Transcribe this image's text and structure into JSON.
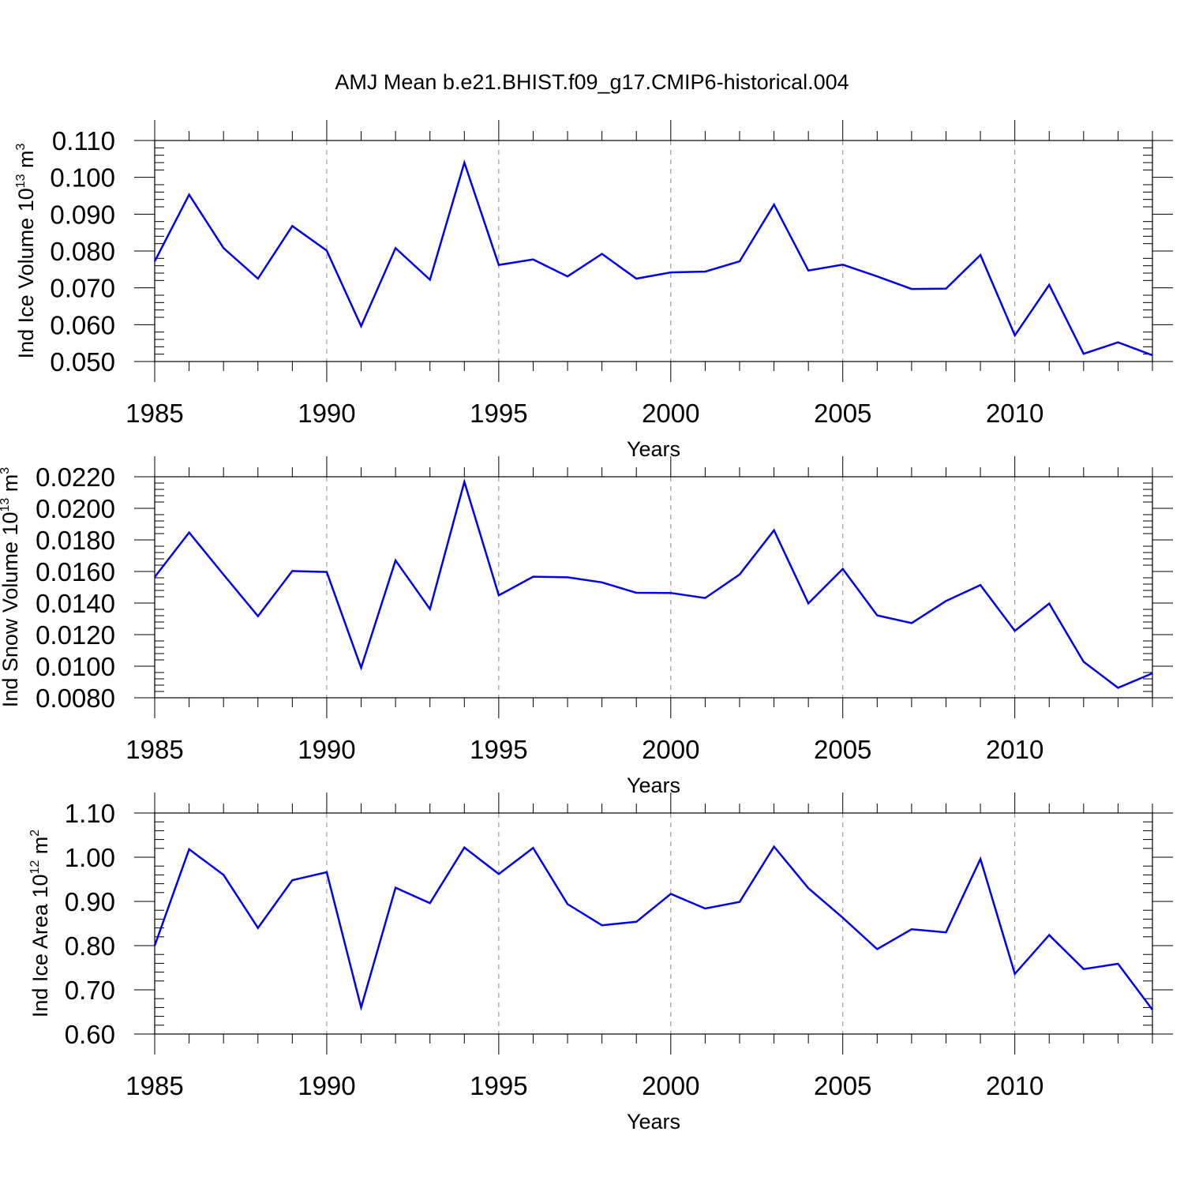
{
  "figure": {
    "title": "AMJ Mean b.e21.BHIST.f09_g17.CMIP6-historical.004",
    "line_color": "#0000ee",
    "grid_color": "#888888"
  },
  "chart_data": [
    {
      "type": "line",
      "xlabel": "Years",
      "ylabel": {
        "main": "Ind Ice Volume 10",
        "sup": "13",
        "unit": " m",
        "unit_sup": "3"
      },
      "xlim": [
        1985,
        2014
      ],
      "ylim": [
        0.05,
        0.11
      ],
      "xticks": [
        1985,
        1990,
        1995,
        2000,
        2005,
        2010
      ],
      "xtick_labels": [
        "1985",
        "1990",
        "1995",
        "2000",
        "2005",
        "2010"
      ],
      "yticks": [
        0.05,
        0.06,
        0.07,
        0.08,
        0.09,
        0.1,
        0.11
      ],
      "ytick_labels": [
        "0.050",
        "0.060",
        "0.070",
        "0.080",
        "0.090",
        "0.100",
        "0.110"
      ],
      "grid": "vertical dashed at major x ticks",
      "x": [
        1985,
        1986,
        1987,
        1988,
        1989,
        1990,
        1991,
        1992,
        1993,
        1994,
        1995,
        1996,
        1997,
        1998,
        1999,
        2000,
        2001,
        2002,
        2003,
        2004,
        2005,
        2006,
        2007,
        2008,
        2009,
        2010,
        2011,
        2012,
        2013,
        2014
      ],
      "series": [
        {
          "values": [
            0.0772,
            0.0953,
            0.0808,
            0.0725,
            0.0868,
            0.0801,
            0.0596,
            0.0808,
            0.0722,
            0.104,
            0.0762,
            0.0777,
            0.0731,
            0.0792,
            0.0725,
            0.0742,
            0.0744,
            0.0772,
            0.0926,
            0.0747,
            0.0763,
            0.0731,
            0.0697,
            0.0698,
            0.0789,
            0.0571,
            0.0708,
            0.0521,
            0.0552,
            0.0517
          ]
        }
      ]
    },
    {
      "type": "line",
      "xlabel": "Years",
      "ylabel": {
        "main": "Ind Snow Volume 10",
        "sup": "13",
        "unit": " m",
        "unit_sup": "3"
      },
      "xlim": [
        1985,
        2014
      ],
      "ylim": [
        0.008,
        0.022
      ],
      "xticks": [
        1985,
        1990,
        1995,
        2000,
        2005,
        2010
      ],
      "xtick_labels": [
        "1985",
        "1990",
        "1995",
        "2000",
        "2005",
        "2010"
      ],
      "yticks": [
        0.008,
        0.01,
        0.012,
        0.014,
        0.016,
        0.018,
        0.02,
        0.022
      ],
      "ytick_labels": [
        "0.0080",
        "0.0100",
        "0.0120",
        "0.0140",
        "0.0160",
        "0.0180",
        "0.0200",
        "0.0220"
      ],
      "grid": "vertical dashed at major x ticks",
      "x": [
        1985,
        1986,
        1987,
        1988,
        1989,
        1990,
        1991,
        1992,
        1993,
        1994,
        1995,
        1996,
        1997,
        1998,
        1999,
        2000,
        2001,
        2002,
        2003,
        2004,
        2005,
        2006,
        2007,
        2008,
        2009,
        2010,
        2011,
        2012,
        2013,
        2014
      ],
      "series": [
        {
          "values": [
            0.01565,
            0.01847,
            0.0158,
            0.01317,
            0.01603,
            0.01597,
            0.0099,
            0.0167,
            0.01362,
            0.02168,
            0.01449,
            0.01567,
            0.01563,
            0.01531,
            0.01465,
            0.01464,
            0.01432,
            0.01581,
            0.01861,
            0.01398,
            0.01616,
            0.01322,
            0.01273,
            0.01413,
            0.01514,
            0.01224,
            0.01397,
            0.01028,
            0.00863,
            0.00955
          ]
        }
      ]
    },
    {
      "type": "line",
      "xlabel": "Years",
      "ylabel": {
        "main": "Ind Ice Area 10",
        "sup": "12",
        "unit": " m",
        "unit_sup": "2"
      },
      "xlim": [
        1985,
        2014
      ],
      "ylim": [
        0.6,
        1.1
      ],
      "xticks": [
        1985,
        1990,
        1995,
        2000,
        2005,
        2010
      ],
      "xtick_labels": [
        "1985",
        "1990",
        "1995",
        "2000",
        "2005",
        "2010"
      ],
      "yticks": [
        0.6,
        0.7,
        0.8,
        0.9,
        1.0,
        1.1
      ],
      "ytick_labels": [
        "0.60",
        "0.70",
        "0.80",
        "0.90",
        "1.00",
        "1.10"
      ],
      "grid": "vertical dashed at major x ticks",
      "x": [
        1985,
        1986,
        1987,
        1988,
        1989,
        1990,
        1991,
        1992,
        1993,
        1994,
        1995,
        1996,
        1997,
        1998,
        1999,
        2000,
        2001,
        2002,
        2003,
        2004,
        2005,
        2006,
        2007,
        2008,
        2009,
        2010,
        2011,
        2012,
        2013,
        2014
      ],
      "series": [
        {
          "values": [
            0.8,
            1.018,
            0.96,
            0.84,
            0.948,
            0.966,
            0.66,
            0.931,
            0.896,
            1.022,
            0.962,
            1.021,
            0.894,
            0.846,
            0.854,
            0.917,
            0.884,
            0.899,
            1.024,
            0.93,
            0.863,
            0.792,
            0.837,
            0.83,
            0.996,
            0.736,
            0.824,
            0.747,
            0.759,
            0.655
          ]
        }
      ]
    }
  ]
}
